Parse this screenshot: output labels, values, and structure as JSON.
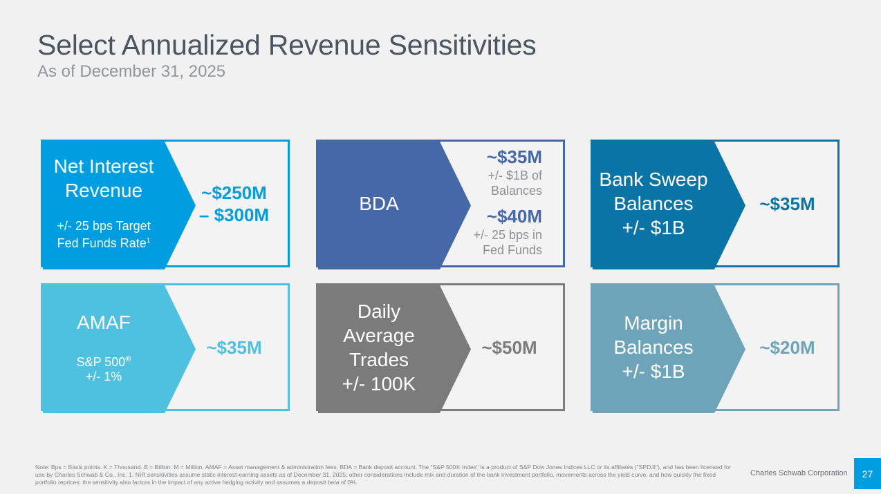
{
  "header": {
    "title": "Select Annualized Revenue Sensitivities",
    "subtitle": "As of December 31, 2025"
  },
  "colors": {
    "nir": "#009ee0",
    "bda": "#4568a8",
    "sweep": "#0b74a6",
    "amaf": "#4ec1e0",
    "trades": "#7b7b7b",
    "margin": "#6ea4ba"
  },
  "cards": {
    "nir": {
      "label": "Net Interest\nRevenue",
      "note": "+/- 25 bps Target\nFed Funds Rate",
      "note_sup": "1",
      "value": "~$250M\n– $300M"
    },
    "bda": {
      "label": "BDA",
      "value1": "~$35M",
      "note1": "+/- $1B of\nBalances",
      "value2": "~$40M",
      "note2": "+/- 25 bps in\nFed Funds"
    },
    "sweep": {
      "label": "Bank Sweep\nBalances\n+/- $1B",
      "value": "~$35M"
    },
    "amaf": {
      "label": "AMAF",
      "note": "S&P 500",
      "note_reg": "®",
      "note2": "+/- 1%",
      "value": "~$35M"
    },
    "trades": {
      "label": "Daily\nAverage\nTrades\n+/- 100K",
      "value": "~$50M"
    },
    "margin": {
      "label": "Margin\nBalances\n+/- $1B",
      "value": "~$20M"
    }
  },
  "footer": {
    "note": "Note: Bps = Basis points. K = Thousand. B = Billion. M = Million. AMAF = Asset management & administration fees. BDA = Bank deposit account. The \"S&P 500® Index\" is a product of S&P Dow Jones Indices LLC or its affiliates (\"SPDJI\"), and has been licensed for use by Charles Schwab & Co., Inc. 1. NIR sensitivities assume static interest-earning assets as of December 31, 2025; other considerations include mix and duration of the bank investment portfolio, movements across the yield curve, and how quickly the fixed portfolio reprices; the sensitivity also factors in the impact of any active hedging activity and assumes a deposit beta of 0%.",
    "company": "Charles Schwab Corporation",
    "page": "27"
  }
}
